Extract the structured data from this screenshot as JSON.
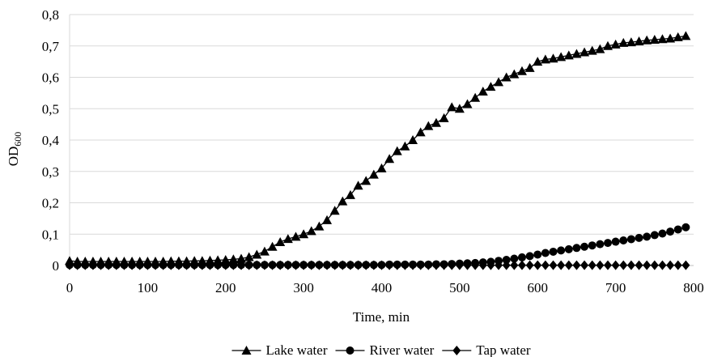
{
  "chart_data": {
    "type": "line",
    "ylabel_main": "OD",
    "ylabel_sub": "600",
    "xlabel": "Time, min",
    "xlim": [
      0,
      800
    ],
    "ylim": [
      0,
      0.8
    ],
    "xticks": [
      0,
      100,
      200,
      300,
      400,
      500,
      600,
      700,
      800
    ],
    "xtick_labels": [
      "0",
      "100",
      "200",
      "300",
      "400",
      "500",
      "600",
      "700",
      "800"
    ],
    "yticks": [
      0,
      0.1,
      0.2,
      0.3,
      0.4,
      0.5,
      0.6,
      0.7,
      0.8
    ],
    "ytick_labels": [
      "0",
      "0,1",
      "0,2",
      "0,3",
      "0,4",
      "0,5",
      "0,6",
      "0,7",
      "0,8"
    ],
    "grid": "horizontal",
    "legend": "bottom",
    "x": [
      0,
      10,
      20,
      30,
      40,
      50,
      60,
      70,
      80,
      90,
      100,
      110,
      120,
      130,
      140,
      150,
      160,
      170,
      180,
      190,
      200,
      210,
      220,
      230,
      240,
      250,
      260,
      270,
      280,
      290,
      300,
      310,
      320,
      330,
      340,
      350,
      360,
      370,
      380,
      390,
      400,
      410,
      420,
      430,
      440,
      450,
      460,
      470,
      480,
      490,
      500,
      510,
      520,
      530,
      540,
      550,
      560,
      570,
      580,
      590,
      600,
      610,
      620,
      630,
      640,
      650,
      660,
      670,
      680,
      690,
      700,
      710,
      720,
      730,
      740,
      750,
      760,
      770,
      780,
      790
    ],
    "series": [
      {
        "name": "Lake water",
        "marker": "triangle",
        "color": "#000000",
        "values": [
          0.015,
          0.013,
          0.013,
          0.013,
          0.013,
          0.013,
          0.013,
          0.013,
          0.013,
          0.013,
          0.013,
          0.013,
          0.013,
          0.014,
          0.014,
          0.014,
          0.015,
          0.015,
          0.016,
          0.017,
          0.018,
          0.02,
          0.022,
          0.027,
          0.035,
          0.045,
          0.06,
          0.075,
          0.085,
          0.092,
          0.1,
          0.11,
          0.125,
          0.145,
          0.175,
          0.205,
          0.225,
          0.255,
          0.27,
          0.29,
          0.31,
          0.34,
          0.365,
          0.38,
          0.4,
          0.425,
          0.445,
          0.455,
          0.47,
          0.505,
          0.5,
          0.515,
          0.535,
          0.555,
          0.57,
          0.585,
          0.6,
          0.61,
          0.62,
          0.63,
          0.65,
          0.657,
          0.66,
          0.665,
          0.67,
          0.675,
          0.68,
          0.685,
          0.69,
          0.7,
          0.705,
          0.71,
          0.712,
          0.715,
          0.718,
          0.72,
          0.722,
          0.724,
          0.728,
          0.732
        ]
      },
      {
        "name": "River water",
        "marker": "circle",
        "color": "#000000",
        "values": [
          0.002,
          0.002,
          0.002,
          0.002,
          0.002,
          0.002,
          0.002,
          0.002,
          0.002,
          0.002,
          0.002,
          0.002,
          0.002,
          0.002,
          0.002,
          0.002,
          0.002,
          0.002,
          0.002,
          0.002,
          0.002,
          0.002,
          0.002,
          0.002,
          0.002,
          0.002,
          0.002,
          0.002,
          0.002,
          0.002,
          0.002,
          0.002,
          0.002,
          0.002,
          0.002,
          0.002,
          0.002,
          0.002,
          0.002,
          0.002,
          0.002,
          0.003,
          0.003,
          0.003,
          0.003,
          0.003,
          0.003,
          0.004,
          0.004,
          0.005,
          0.006,
          0.007,
          0.008,
          0.01,
          0.012,
          0.015,
          0.018,
          0.022,
          0.026,
          0.03,
          0.035,
          0.04,
          0.044,
          0.048,
          0.052,
          0.056,
          0.06,
          0.064,
          0.068,
          0.072,
          0.076,
          0.08,
          0.084,
          0.088,
          0.092,
          0.097,
          0.102,
          0.108,
          0.115,
          0.122
        ]
      },
      {
        "name": "Tap water",
        "marker": "diamond",
        "color": "#000000",
        "values": [
          0.001,
          0.001,
          0.001,
          0.001,
          0.001,
          0.001,
          0.001,
          0.001,
          0.001,
          0.001,
          0.001,
          0.001,
          0.001,
          0.001,
          0.001,
          0.001,
          0.001,
          0.001,
          0.001,
          0.001,
          0.001,
          0.001,
          0.001,
          0.001,
          0.001,
          0.001,
          0.001,
          0.001,
          0.001,
          0.001,
          0.001,
          0.001,
          0.001,
          0.001,
          0.001,
          0.001,
          0.001,
          0.001,
          0.001,
          0.001,
          0.001,
          0.001,
          0.001,
          0.001,
          0.001,
          0.001,
          0.001,
          0.001,
          0.001,
          0.001,
          0.001,
          0.001,
          0.001,
          0.001,
          0.001,
          0.001,
          0.001,
          0.001,
          0.001,
          0.001,
          0.001,
          0.001,
          0.001,
          0.001,
          0.001,
          0.001,
          0.001,
          0.001,
          0.001,
          0.001,
          0.001,
          0.001,
          0.001,
          0.001,
          0.001,
          0.001,
          0.001,
          0.001,
          0.001,
          0.001
        ]
      }
    ]
  }
}
